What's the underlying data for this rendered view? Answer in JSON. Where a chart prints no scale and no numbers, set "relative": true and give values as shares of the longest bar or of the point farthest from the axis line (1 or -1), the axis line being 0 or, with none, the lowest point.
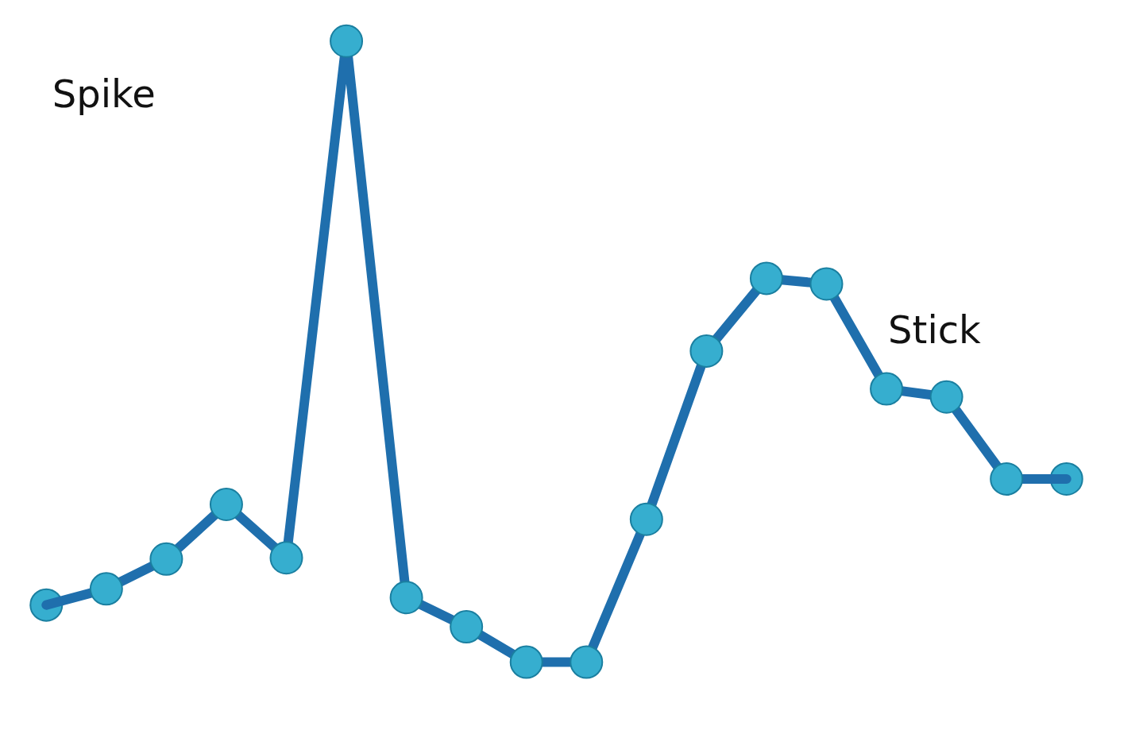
{
  "chart_data": {
    "type": "line",
    "relative": true,
    "categories": [
      null,
      null,
      null,
      null,
      null,
      null,
      null,
      null,
      null,
      null,
      null,
      null,
      null,
      null,
      null,
      null,
      null,
      null
    ],
    "series": [
      {
        "color": "#1f6fad",
        "values": [
          0.092,
          0.118,
          0.166,
          0.254,
          0.168,
          1,
          0.104,
          0.057,
          0,
          0,
          0.23,
          0.501,
          0.618,
          0.609,
          0.44,
          0.427,
          0.295,
          0.295
        ]
      }
    ],
    "marker": "circle",
    "annotations": [
      "Spike",
      "Stick"
    ],
    "grid": false,
    "tick_labels": false
  }
}
